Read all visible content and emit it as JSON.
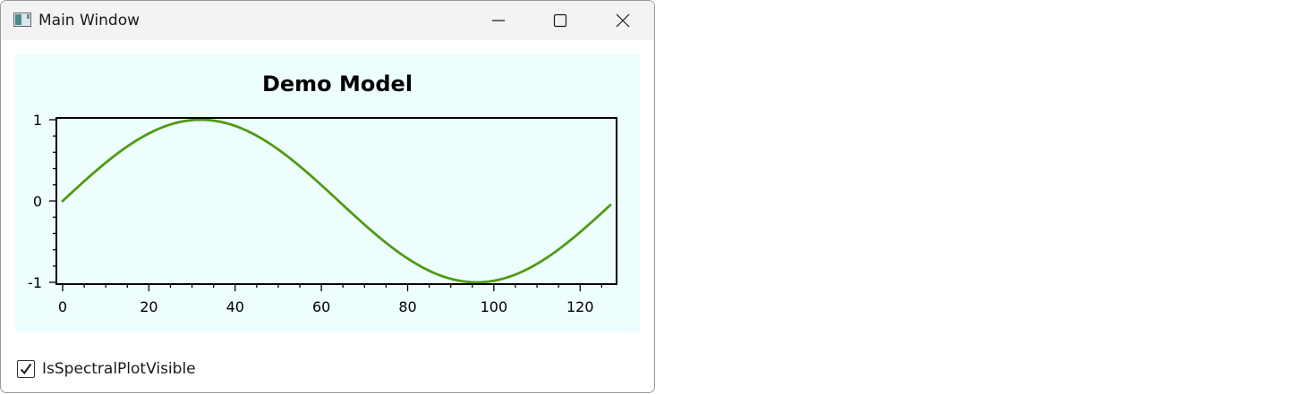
{
  "window": {
    "title": "Main Window",
    "icon": "app-window-icon",
    "buttons": {
      "minimize": "minimize-icon",
      "maximize": "maximize-icon",
      "close": "close-icon"
    }
  },
  "plot": {
    "background": "#eefefe"
  },
  "checkbox": {
    "label": "IsSpectralPlotVisible",
    "checked": true
  },
  "chart_data": {
    "type": "line",
    "title": "Demo Model",
    "xlabel": "",
    "ylabel": "",
    "xlim": [
      0,
      127
    ],
    "ylim": [
      -1,
      1
    ],
    "x_ticks": [
      0,
      20,
      40,
      60,
      80,
      100,
      120
    ],
    "y_ticks": [
      -1,
      0,
      1
    ],
    "grid": false,
    "series": [
      {
        "function": "sin(2*pi*x/128)",
        "x_start": 0,
        "x_end": 127,
        "x_step": 1,
        "color": "#4f9a10"
      }
    ]
  }
}
